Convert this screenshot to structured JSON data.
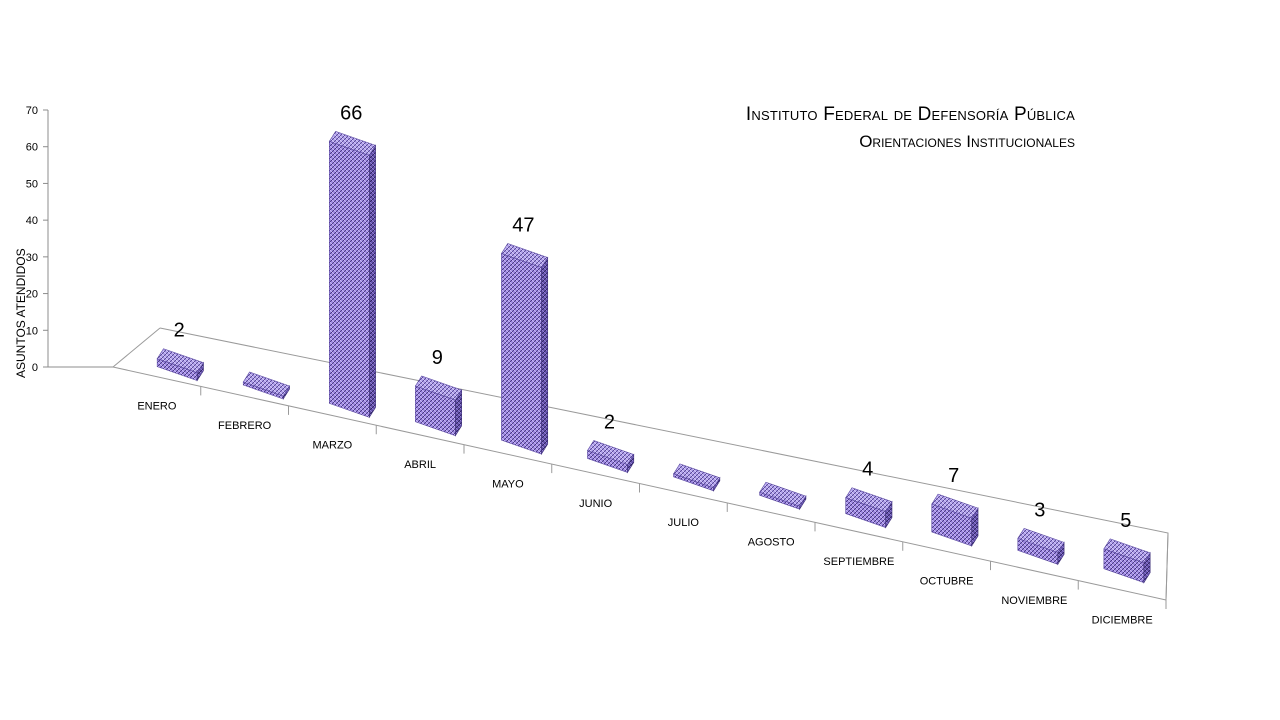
{
  "chart_data": {
    "type": "bar",
    "title": "Instituto Federal de Defensoría Pública",
    "subtitle": "Orientaciones Institucionales",
    "ylabel": "ASUNTOS ATENDIDOS",
    "xlabel": "",
    "ylim": [
      0,
      70
    ],
    "yticks": [
      "0",
      "10",
      "20",
      "30",
      "40",
      "50",
      "60",
      "70"
    ],
    "categories": [
      "ENERO",
      "FEBRERO",
      "MARZO",
      "ABRIL",
      "MAYO",
      "JUNIO",
      "JULIO",
      "AGOSTO",
      "SEPTIEMBRE",
      "OCTUBRE",
      "NOVIEMBRE",
      "DICIEMBRE"
    ],
    "values": [
      2,
      0,
      66,
      9,
      47,
      2,
      0,
      0,
      4,
      7,
      3,
      5
    ],
    "data_labels": [
      "2",
      "",
      "66",
      "9",
      "47",
      "2",
      "",
      "",
      "4",
      "7",
      "3",
      "5"
    ],
    "bar_color": "#9a82e0",
    "bar_side_color": "#5e4aa6",
    "bar_top_color": "#b4a2ee",
    "grid": false,
    "legend": "none"
  }
}
